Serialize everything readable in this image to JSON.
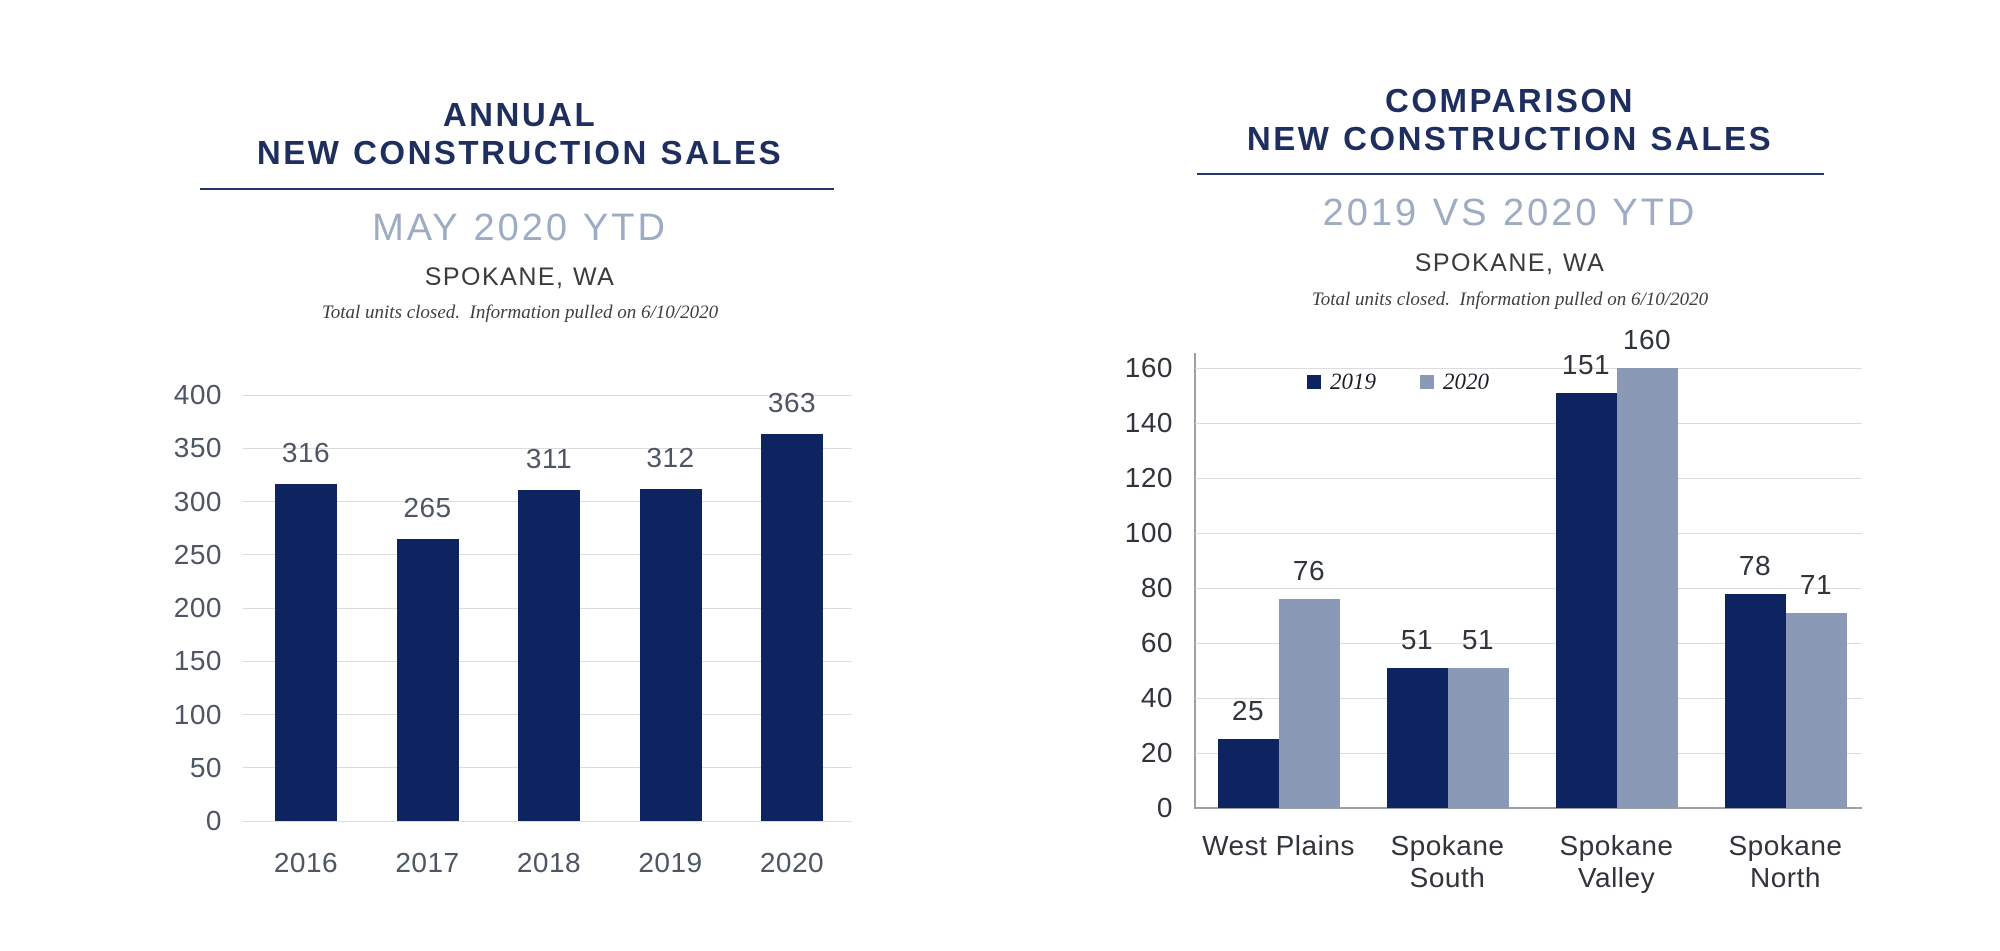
{
  "left_chart": {
    "title_line1": "ANNUAL",
    "title_line2": "NEW CONSTRUCTION SALES",
    "subtitle": "MAY 2020 YTD",
    "location": "SPOKANE, WA",
    "note": "Total units closed.  Information pulled on 6/10/2020"
  },
  "right_chart": {
    "title_line1": "COMPARISON",
    "title_line2": "NEW CONSTRUCTION SALES",
    "subtitle": "2019 VS 2020 YTD",
    "location": "SPOKANE, WA",
    "note": "Total units closed.  Information pulled on 6/10/2020"
  },
  "colors": {
    "title_navy": "#1D2E5F",
    "underline_navy": "#24356B",
    "subtitle_gray_blue": "#9DACC2",
    "bar_navy": "#0D2461",
    "bar_gray_blue": "#8A99B5",
    "gridline_gray": "#DCDCDC",
    "axis_line_gray": "#9AA0A8",
    "left_axis_text": "#4E5663",
    "right_axis_text": "#30343B"
  },
  "chart_data": [
    {
      "type": "bar",
      "title": "ANNUAL NEW CONSTRUCTION SALES",
      "subtitle": "MAY 2020 YTD",
      "location": "SPOKANE, WA",
      "footnote": "Total units closed.  Information pulled on 6/10/2020",
      "categories": [
        "2016",
        "2017",
        "2018",
        "2019",
        "2020"
      ],
      "values": [
        316,
        265,
        311,
        312,
        363
      ],
      "bar_color": "#0D2461",
      "ylim": [
        0,
        400
      ],
      "ytick_step": 50,
      "grid": true,
      "legend_position": "none",
      "data_labels": true
    },
    {
      "type": "bar",
      "title": "COMPARISON NEW CONSTRUCTION SALES",
      "subtitle": "2019 VS 2020 YTD",
      "location": "SPOKANE, WA",
      "footnote": "Total units closed.  Information pulled on 6/10/2020",
      "categories": [
        "West Plains",
        "Spokane South",
        "Spokane Valley",
        "Spokane North"
      ],
      "category_lines": [
        [
          "West Plains"
        ],
        [
          "Spokane",
          "South"
        ],
        [
          "Spokane",
          "Valley"
        ],
        [
          "Spokane",
          "North"
        ]
      ],
      "series": [
        {
          "name": "2019",
          "values": [
            25,
            51,
            151,
            78
          ],
          "color": "#0D2461"
        },
        {
          "name": "2020",
          "values": [
            76,
            51,
            160,
            71
          ],
          "color": "#8A99B5"
        }
      ],
      "ylim": [
        0,
        160
      ],
      "ytick_step": 20,
      "grid": true,
      "legend_position": "top",
      "data_labels": true
    }
  ]
}
